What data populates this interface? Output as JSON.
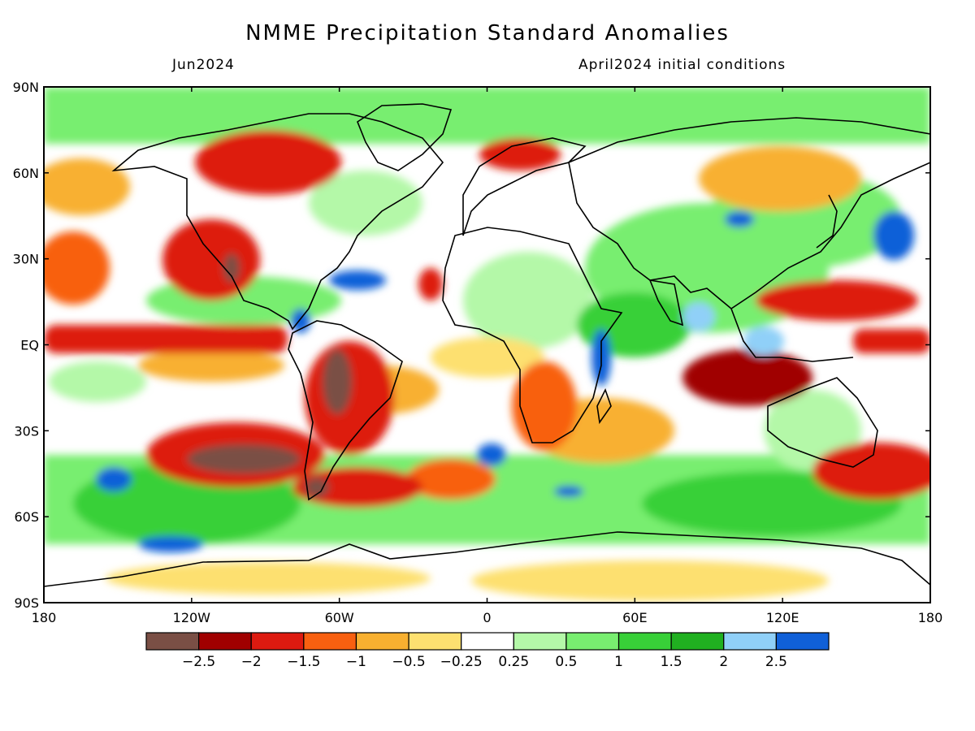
{
  "title": "NMME Precipitation Standard Anomalies",
  "subtitle_left": "Jun2024",
  "subtitle_right": "April2024 initial conditions",
  "axes": {
    "lat_ticks": [
      "90N",
      "60N",
      "30N",
      "EQ",
      "30S",
      "60S",
      "90S"
    ],
    "lon_ticks": [
      "180",
      "120W",
      "60W",
      "0",
      "60E",
      "120E",
      "180"
    ]
  },
  "legend": {
    "colors": [
      "#7a4f45",
      "#a00000",
      "#dd1a10",
      "#f86010",
      "#f8b030",
      "#fde070",
      "#ffffff",
      "#b4f8a8",
      "#78ee70",
      "#38d038",
      "#20b020",
      "#90d0f8",
      "#1060d8"
    ],
    "labels": [
      "−2.5",
      "−2",
      "−1.5",
      "−1",
      "−0.5",
      "−0.25",
      "0.25",
      "0.5",
      "1",
      "1.5",
      "2",
      "2.5"
    ]
  }
}
